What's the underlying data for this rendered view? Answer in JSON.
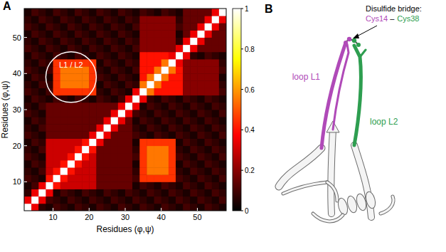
{
  "chart_data": {
    "type": "heatmap",
    "panel_label": "A",
    "x_label": "Residues (φ,ψ)",
    "y_label": "Residues (φ,ψ)",
    "x": [
      3,
      5,
      7,
      9,
      11,
      13,
      15,
      17,
      19,
      21,
      23,
      25,
      27,
      29,
      31,
      33,
      35,
      37,
      39,
      41,
      43,
      45,
      47,
      49,
      51,
      53,
      55,
      57
    ],
    "y": [
      3,
      5,
      7,
      9,
      11,
      13,
      15,
      17,
      19,
      21,
      23,
      25,
      27,
      29,
      31,
      33,
      35,
      37,
      39,
      41,
      43,
      45,
      47,
      49,
      51,
      53,
      55,
      57
    ],
    "xlim": [
      2,
      58
    ],
    "ylim": [
      2,
      58
    ],
    "xticks": [
      10,
      20,
      30,
      40,
      50
    ],
    "yticks": [
      10,
      20,
      30,
      40,
      50
    ],
    "cells": [
      [
        1,
        0.35,
        0.07,
        0.04,
        0.1,
        0.07,
        0.04,
        0.1,
        0.07,
        0.04,
        0.1,
        0.07,
        0.04,
        0.1,
        0.07,
        0.04,
        0.1,
        0.07,
        0.04,
        0.1,
        0.07,
        0.04,
        0.1,
        0.07,
        0.04,
        0.1,
        0.07,
        0.04
      ],
      [
        0.35,
        1,
        0.35,
        0.1,
        0.07,
        0.04,
        0.1,
        0.07,
        0.04,
        0.1,
        0.07,
        0.04,
        0.1,
        0.07,
        0.04,
        0.1,
        0.07,
        0.04,
        0.1,
        0.07,
        0.04,
        0.1,
        0.07,
        0.04,
        0.1,
        0.07,
        0.04,
        0.1
      ],
      [
        0.07,
        0.35,
        1,
        0.35,
        0.04,
        0.1,
        0.07,
        0.04,
        0.1,
        0.07,
        0.04,
        0.1,
        0.07,
        0.04,
        0.1,
        0.07,
        0.04,
        0.1,
        0.07,
        0.04,
        0.1,
        0.07,
        0.04,
        0.1,
        0.07,
        0.04,
        0.1,
        0.07
      ],
      [
        0.04,
        0.1,
        0.35,
        1,
        0.4,
        0.3,
        0.3,
        0.3,
        0.3,
        0.3,
        0.15,
        0.15,
        0.15,
        0.15,
        0.15,
        0.04,
        0.1,
        0.07,
        0.04,
        0.1,
        0.07,
        0.04,
        0.1,
        0.07,
        0.04,
        0.1,
        0.07,
        0.04
      ],
      [
        0.1,
        0.07,
        0.04,
        0.4,
        1,
        0.4,
        0.3,
        0.3,
        0.3,
        0.3,
        0.15,
        0.15,
        0.15,
        0.15,
        0.15,
        0.1,
        0.45,
        0.45,
        0.45,
        0.45,
        0.45,
        0.1,
        0.07,
        0.04,
        0.1,
        0.07,
        0.04,
        0.1
      ],
      [
        0.07,
        0.04,
        0.1,
        0.3,
        0.4,
        1,
        0.4,
        0.3,
        0.3,
        0.3,
        0.15,
        0.15,
        0.15,
        0.15,
        0.15,
        0.07,
        0.45,
        0.55,
        0.55,
        0.55,
        0.45,
        0.07,
        0.04,
        0.1,
        0.07,
        0.04,
        0.1,
        0.07
      ],
      [
        0.04,
        0.1,
        0.07,
        0.3,
        0.3,
        0.4,
        1,
        0.4,
        0.3,
        0.3,
        0.15,
        0.15,
        0.15,
        0.15,
        0.15,
        0.04,
        0.45,
        0.55,
        0.55,
        0.55,
        0.45,
        0.04,
        0.1,
        0.07,
        0.04,
        0.1,
        0.07,
        0.04
      ],
      [
        0.1,
        0.07,
        0.04,
        0.3,
        0.3,
        0.3,
        0.4,
        1,
        0.4,
        0.3,
        0.15,
        0.15,
        0.15,
        0.15,
        0.15,
        0.1,
        0.45,
        0.55,
        0.55,
        0.55,
        0.45,
        0.1,
        0.07,
        0.04,
        0.1,
        0.07,
        0.04,
        0.1
      ],
      [
        0.07,
        0.04,
        0.1,
        0.3,
        0.3,
        0.3,
        0.3,
        0.4,
        1,
        0.4,
        0.15,
        0.15,
        0.15,
        0.15,
        0.15,
        0.07,
        0.45,
        0.55,
        0.55,
        0.55,
        0.45,
        0.07,
        0.04,
        0.1,
        0.07,
        0.04,
        0.1,
        0.07
      ],
      [
        0.04,
        0.1,
        0.07,
        0.3,
        0.3,
        0.3,
        0.3,
        0.3,
        0.4,
        1,
        0.35,
        0.15,
        0.15,
        0.15,
        0.15,
        0.04,
        0.45,
        0.45,
        0.45,
        0.45,
        0.45,
        0.04,
        0.1,
        0.07,
        0.04,
        0.1,
        0.07,
        0.04
      ],
      [
        0.1,
        0.07,
        0.04,
        0.15,
        0.15,
        0.15,
        0.15,
        0.15,
        0.15,
        0.35,
        1,
        0.35,
        0.15,
        0.15,
        0.15,
        0.1,
        0.07,
        0.04,
        0.1,
        0.07,
        0.04,
        0.1,
        0.07,
        0.04,
        0.1,
        0.07,
        0.04,
        0.1
      ],
      [
        0.07,
        0.04,
        0.1,
        0.15,
        0.15,
        0.15,
        0.15,
        0.15,
        0.15,
        0.15,
        0.35,
        1,
        0.35,
        0.15,
        0.15,
        0.07,
        0.04,
        0.1,
        0.07,
        0.04,
        0.1,
        0.07,
        0.04,
        0.1,
        0.07,
        0.04,
        0.1,
        0.07
      ],
      [
        0.04,
        0.1,
        0.07,
        0.15,
        0.15,
        0.15,
        0.15,
        0.15,
        0.15,
        0.15,
        0.15,
        0.35,
        1,
        0.35,
        0.15,
        0.04,
        0.1,
        0.07,
        0.04,
        0.1,
        0.07,
        0.04,
        0.1,
        0.07,
        0.04,
        0.1,
        0.07,
        0.04
      ],
      [
        0.1,
        0.07,
        0.04,
        0.15,
        0.15,
        0.15,
        0.15,
        0.15,
        0.15,
        0.15,
        0.15,
        0.15,
        0.35,
        1,
        0.35,
        0.1,
        0.07,
        0.04,
        0.1,
        0.07,
        0.04,
        0.1,
        0.07,
        0.04,
        0.1,
        0.07,
        0.04,
        0.1
      ],
      [
        0.07,
        0.04,
        0.1,
        0.15,
        0.15,
        0.15,
        0.15,
        0.15,
        0.15,
        0.15,
        0.15,
        0.15,
        0.15,
        0.35,
        1,
        0.35,
        0.04,
        0.1,
        0.07,
        0.04,
        0.1,
        0.07,
        0.04,
        0.1,
        0.07,
        0.04,
        0.1,
        0.07
      ],
      [
        0.04,
        0.1,
        0.07,
        0.04,
        0.1,
        0.07,
        0.04,
        0.1,
        0.07,
        0.04,
        0.1,
        0.07,
        0.04,
        0.1,
        0.35,
        1,
        0.35,
        0.07,
        0.04,
        0.1,
        0.07,
        0.04,
        0.1,
        0.07,
        0.04,
        0.1,
        0.07,
        0.04
      ],
      [
        0.1,
        0.07,
        0.04,
        0.1,
        0.45,
        0.45,
        0.45,
        0.45,
        0.45,
        0.45,
        0.07,
        0.04,
        0.1,
        0.07,
        0.04,
        0.35,
        1,
        0.55,
        0.4,
        0.4,
        0.4,
        0.4,
        0.2,
        0.2,
        0.2,
        0.2,
        0.2,
        0.1
      ],
      [
        0.07,
        0.04,
        0.1,
        0.07,
        0.45,
        0.55,
        0.55,
        0.55,
        0.55,
        0.45,
        0.04,
        0.1,
        0.07,
        0.04,
        0.1,
        0.07,
        0.55,
        1,
        0.55,
        0.4,
        0.4,
        0.4,
        0.2,
        0.2,
        0.2,
        0.2,
        0.2,
        0.07
      ],
      [
        0.04,
        0.1,
        0.07,
        0.04,
        0.45,
        0.55,
        0.55,
        0.55,
        0.55,
        0.45,
        0.1,
        0.07,
        0.04,
        0.1,
        0.07,
        0.04,
        0.4,
        0.55,
        1,
        0.55,
        0.4,
        0.4,
        0.2,
        0.2,
        0.2,
        0.2,
        0.2,
        0.04
      ],
      [
        0.1,
        0.07,
        0.04,
        0.1,
        0.45,
        0.55,
        0.55,
        0.55,
        0.55,
        0.45,
        0.07,
        0.04,
        0.1,
        0.07,
        0.04,
        0.1,
        0.4,
        0.4,
        0.55,
        1,
        0.55,
        0.4,
        0.2,
        0.2,
        0.2,
        0.2,
        0.2,
        0.1
      ],
      [
        0.07,
        0.04,
        0.1,
        0.07,
        0.45,
        0.45,
        0.45,
        0.45,
        0.45,
        0.45,
        0.04,
        0.1,
        0.07,
        0.04,
        0.1,
        0.07,
        0.4,
        0.4,
        0.4,
        0.55,
        1,
        0.35,
        0.2,
        0.2,
        0.2,
        0.2,
        0.2,
        0.07
      ],
      [
        0.04,
        0.1,
        0.07,
        0.04,
        0.1,
        0.07,
        0.04,
        0.1,
        0.07,
        0.04,
        0.1,
        0.07,
        0.04,
        0.1,
        0.07,
        0.04,
        0.4,
        0.4,
        0.4,
        0.4,
        0.35,
        1,
        0.35,
        0.07,
        0.04,
        0.1,
        0.07,
        0.04
      ],
      [
        0.1,
        0.07,
        0.04,
        0.1,
        0.07,
        0.04,
        0.1,
        0.07,
        0.04,
        0.1,
        0.07,
        0.04,
        0.1,
        0.07,
        0.04,
        0.1,
        0.2,
        0.2,
        0.2,
        0.2,
        0.2,
        0.35,
        1,
        0.35,
        0.15,
        0.15,
        0.15,
        0.15
      ],
      [
        0.07,
        0.04,
        0.1,
        0.07,
        0.04,
        0.1,
        0.07,
        0.04,
        0.1,
        0.07,
        0.04,
        0.1,
        0.07,
        0.04,
        0.1,
        0.07,
        0.2,
        0.2,
        0.2,
        0.2,
        0.2,
        0.07,
        0.35,
        1,
        0.35,
        0.15,
        0.15,
        0.15
      ],
      [
        0.04,
        0.1,
        0.07,
        0.04,
        0.1,
        0.07,
        0.04,
        0.1,
        0.07,
        0.04,
        0.1,
        0.07,
        0.04,
        0.1,
        0.07,
        0.04,
        0.2,
        0.2,
        0.2,
        0.2,
        0.2,
        0.04,
        0.15,
        0.35,
        1,
        0.35,
        0.15,
        0.15
      ],
      [
        0.1,
        0.07,
        0.04,
        0.1,
        0.07,
        0.04,
        0.1,
        0.07,
        0.04,
        0.1,
        0.07,
        0.04,
        0.1,
        0.07,
        0.04,
        0.1,
        0.2,
        0.2,
        0.2,
        0.2,
        0.2,
        0.1,
        0.15,
        0.15,
        0.35,
        1,
        0.35,
        0.15
      ],
      [
        0.07,
        0.04,
        0.1,
        0.07,
        0.04,
        0.1,
        0.07,
        0.04,
        0.1,
        0.07,
        0.04,
        0.1,
        0.07,
        0.04,
        0.1,
        0.07,
        0.2,
        0.2,
        0.2,
        0.2,
        0.2,
        0.07,
        0.15,
        0.15,
        0.15,
        0.35,
        1,
        0.35
      ],
      [
        0.04,
        0.1,
        0.07,
        0.04,
        0.1,
        0.07,
        0.04,
        0.1,
        0.07,
        0.04,
        0.1,
        0.07,
        0.04,
        0.1,
        0.07,
        0.04,
        0.1,
        0.07,
        0.04,
        0.1,
        0.07,
        0.04,
        0.15,
        0.15,
        0.15,
        0.15,
        0.35,
        1
      ]
    ],
    "colorbar": {
      "range": [
        0,
        1
      ],
      "ticks": [
        0,
        0.2,
        0.4,
        0.6,
        0.8,
        1
      ]
    },
    "annotations": [
      {
        "text": "L1 / L2",
        "x": 15,
        "y": 39,
        "radius": 7
      }
    ]
  },
  "diagram": {
    "panel_label": "B",
    "bridge_title": "Disulfide bridge:",
    "bridge": {
      "from": {
        "text": "Cys14",
        "color": "#b04ab8"
      },
      "joiner": "–",
      "to": {
        "text": "Cys38",
        "color": "#2e9e50"
      }
    },
    "loops": [
      {
        "text": "loop L1",
        "color": "#b04ab8"
      },
      {
        "text": "loop L2",
        "color": "#2e9e50"
      }
    ]
  }
}
